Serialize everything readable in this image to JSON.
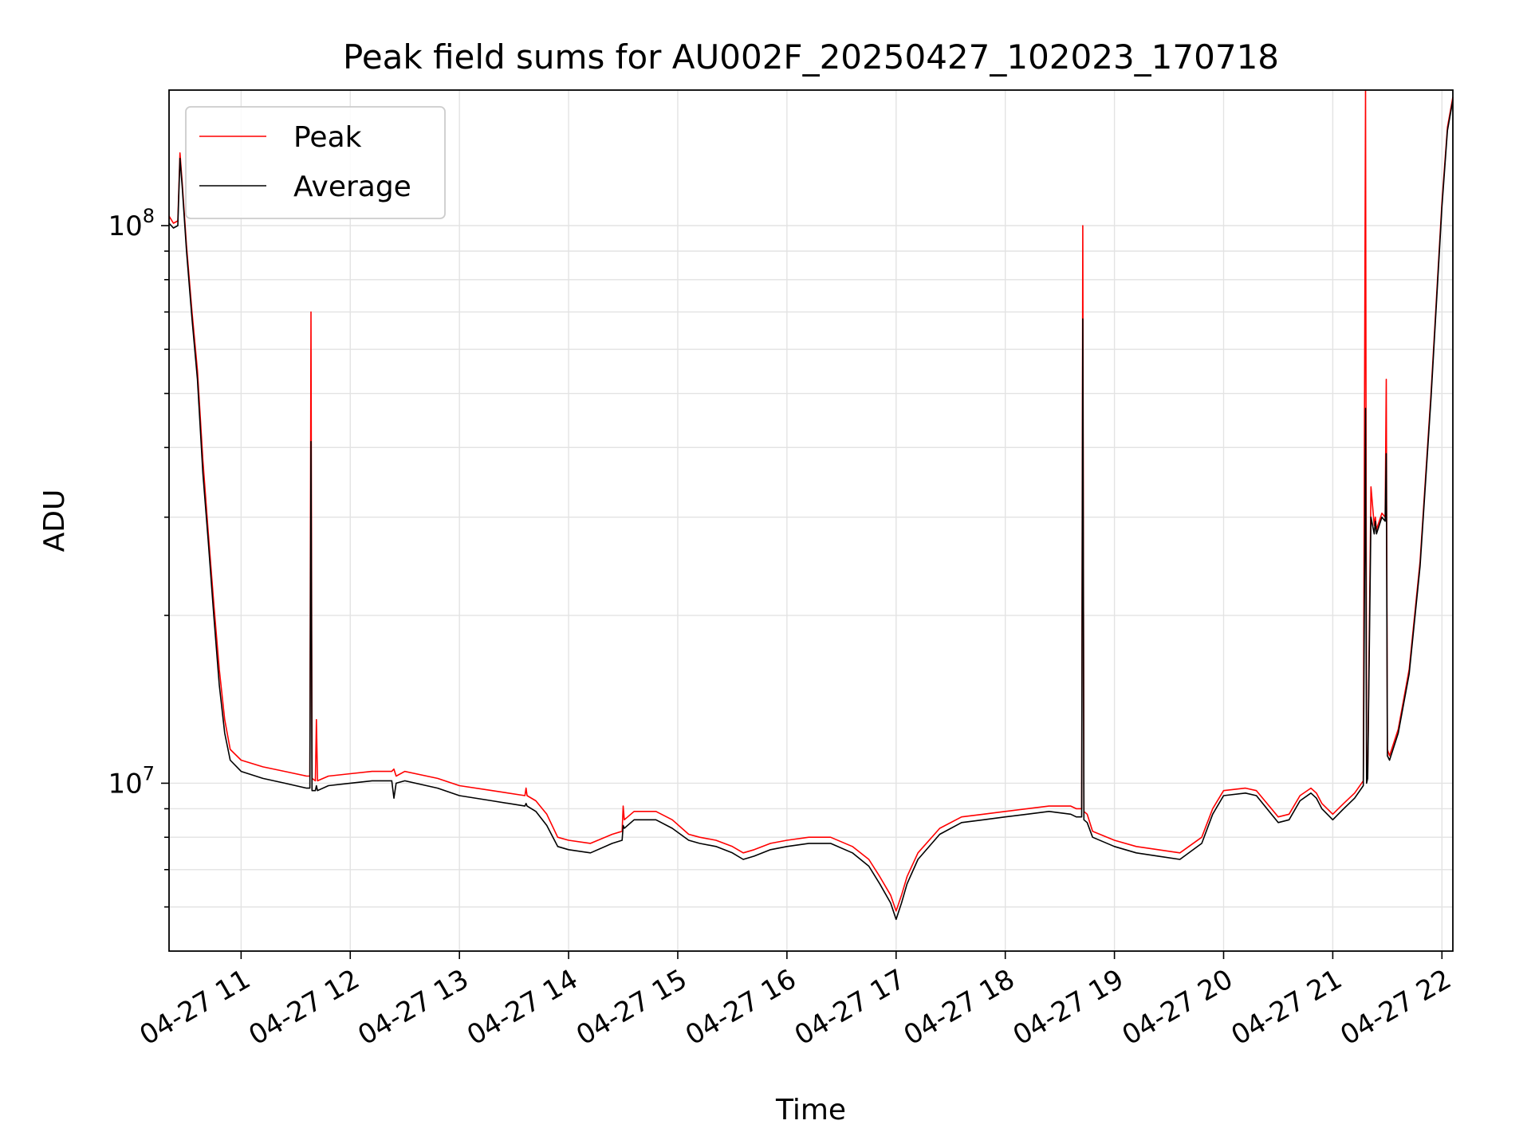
{
  "chart_data": {
    "type": "line",
    "title": "Peak field sums for AU002F_20250427_102023_170718",
    "xlabel": "Time",
    "ylabel": "ADU",
    "x_unit": "hour of 2025-04-27",
    "yscale": "log",
    "xlim": [
      10.34,
      22.1
    ],
    "ylim": [
      5000000,
      175000000
    ],
    "grid": {
      "major": true,
      "minor_y": true
    },
    "legend_position": "top-left",
    "x_ticks": [
      {
        "value": 11,
        "label": "04-27 11"
      },
      {
        "value": 12,
        "label": "04-27 12"
      },
      {
        "value": 13,
        "label": "04-27 13"
      },
      {
        "value": 14,
        "label": "04-27 14"
      },
      {
        "value": 15,
        "label": "04-27 15"
      },
      {
        "value": 16,
        "label": "04-27 16"
      },
      {
        "value": 17,
        "label": "04-27 17"
      },
      {
        "value": 18,
        "label": "04-27 18"
      },
      {
        "value": 19,
        "label": "04-27 19"
      },
      {
        "value": 20,
        "label": "04-27 20"
      },
      {
        "value": 21,
        "label": "04-27 21"
      },
      {
        "value": 22,
        "label": "04-27 22"
      }
    ],
    "y_ticks": [
      {
        "value": 10000000,
        "base": "10",
        "exp": "7"
      },
      {
        "value": 100000000,
        "base": "10",
        "exp": "8"
      }
    ],
    "series": [
      {
        "name": "Peak",
        "color": "#ff0000",
        "x": [
          10.34,
          10.38,
          10.42,
          10.44,
          10.46,
          10.5,
          10.55,
          10.6,
          10.65,
          10.7,
          10.75,
          10.8,
          10.85,
          10.9,
          11.0,
          11.2,
          11.4,
          11.6,
          11.63,
          11.64,
          11.65,
          11.68,
          11.69,
          11.7,
          11.8,
          12.0,
          12.2,
          12.38,
          12.4,
          12.42,
          12.5,
          12.8,
          13.0,
          13.3,
          13.6,
          13.61,
          13.62,
          13.7,
          13.8,
          13.9,
          14.0,
          14.2,
          14.4,
          14.49,
          14.5,
          14.51,
          14.6,
          14.8,
          14.95,
          15.1,
          15.2,
          15.35,
          15.5,
          15.6,
          15.7,
          15.85,
          16.0,
          16.2,
          16.4,
          16.6,
          16.75,
          16.85,
          16.95,
          17.0,
          17.05,
          17.1,
          17.2,
          17.4,
          17.6,
          17.8,
          18.0,
          18.2,
          18.4,
          18.6,
          18.65,
          18.7,
          18.71,
          18.72,
          18.75,
          18.8,
          19.0,
          19.2,
          19.4,
          19.6,
          19.8,
          19.9,
          20.0,
          20.2,
          20.3,
          20.5,
          20.6,
          20.7,
          20.8,
          20.85,
          20.9,
          21.0,
          21.1,
          21.2,
          21.28,
          21.3,
          21.31,
          21.32,
          21.35,
          21.38,
          21.39,
          21.4,
          21.45,
          21.48,
          21.49,
          21.5,
          21.52,
          21.6,
          21.7,
          21.8,
          21.9,
          22.0,
          22.05,
          22.1
        ],
        "y": [
          104000000,
          101000000,
          102000000,
          135000000,
          120000000,
          92000000,
          70000000,
          55000000,
          38000000,
          28000000,
          21000000,
          16000000,
          13000000,
          11500000,
          11000000,
          10700000,
          10500000,
          10300000,
          10300000,
          70000000,
          10200000,
          10100000,
          13000000,
          10100000,
          10300000,
          10400000,
          10500000,
          10500000,
          10600000,
          10300000,
          10500000,
          10200000,
          9900000,
          9700000,
          9500000,
          9800000,
          9500000,
          9300000,
          8800000,
          8000000,
          7900000,
          7800000,
          8100000,
          8200000,
          9100000,
          8600000,
          8900000,
          8900000,
          8600000,
          8100000,
          8000000,
          7900000,
          7700000,
          7500000,
          7600000,
          7800000,
          7900000,
          8000000,
          8000000,
          7700000,
          7300000,
          6800000,
          6300000,
          5900000,
          6300000,
          6800000,
          7500000,
          8300000,
          8700000,
          8800000,
          8900000,
          9000000,
          9100000,
          9100000,
          9000000,
          9000000,
          100000000,
          8900000,
          8800000,
          8200000,
          7900000,
          7700000,
          7600000,
          7500000,
          8000000,
          9000000,
          9700000,
          9800000,
          9700000,
          8700000,
          8800000,
          9500000,
          9800000,
          9600000,
          9200000,
          8800000,
          9200000,
          9600000,
          10100000,
          175000000,
          10200000,
          10400000,
          34000000,
          29000000,
          30000000,
          28500000,
          30500000,
          30000000,
          53000000,
          11500000,
          11200000,
          12500000,
          16000000,
          25000000,
          50000000,
          110000000,
          150000000,
          170000000
        ]
      },
      {
        "name": "Average",
        "color": "#000000",
        "x": [
          10.34,
          10.38,
          10.42,
          10.44,
          10.46,
          10.5,
          10.55,
          10.6,
          10.65,
          10.7,
          10.75,
          10.8,
          10.85,
          10.9,
          11.0,
          11.2,
          11.4,
          11.6,
          11.63,
          11.64,
          11.65,
          11.68,
          11.69,
          11.7,
          11.8,
          12.0,
          12.2,
          12.38,
          12.4,
          12.42,
          12.5,
          12.8,
          13.0,
          13.3,
          13.6,
          13.61,
          13.62,
          13.7,
          13.8,
          13.9,
          14.0,
          14.2,
          14.4,
          14.49,
          14.5,
          14.51,
          14.6,
          14.8,
          14.95,
          15.1,
          15.2,
          15.35,
          15.5,
          15.6,
          15.7,
          15.85,
          16.0,
          16.2,
          16.4,
          16.6,
          16.75,
          16.85,
          16.95,
          17.0,
          17.05,
          17.1,
          17.2,
          17.4,
          17.6,
          17.8,
          18.0,
          18.2,
          18.4,
          18.6,
          18.65,
          18.7,
          18.71,
          18.72,
          18.75,
          18.8,
          19.0,
          19.2,
          19.4,
          19.6,
          19.8,
          19.9,
          20.0,
          20.2,
          20.3,
          20.5,
          20.6,
          20.7,
          20.8,
          20.85,
          20.9,
          21.0,
          21.1,
          21.2,
          21.28,
          21.3,
          21.31,
          21.32,
          21.35,
          21.38,
          21.39,
          21.4,
          21.45,
          21.48,
          21.49,
          21.5,
          21.52,
          21.6,
          21.7,
          21.8,
          21.9,
          22.0,
          22.05,
          22.1
        ],
        "y": [
          101000000,
          99000000,
          100000000,
          132000000,
          118000000,
          90000000,
          68000000,
          53000000,
          36000000,
          27000000,
          20000000,
          15000000,
          12300000,
          11000000,
          10500000,
          10200000,
          10000000,
          9800000,
          9800000,
          41000000,
          9700000,
          9700000,
          9900000,
          9700000,
          9900000,
          10000000,
          10100000,
          10100000,
          9400000,
          10000000,
          10100000,
          9800000,
          9500000,
          9300000,
          9100000,
          9200000,
          9100000,
          8900000,
          8400000,
          7700000,
          7600000,
          7500000,
          7800000,
          7900000,
          8400000,
          8300000,
          8600000,
          8600000,
          8300000,
          7900000,
          7800000,
          7700000,
          7500000,
          7300000,
          7400000,
          7600000,
          7700000,
          7800000,
          7800000,
          7500000,
          7100000,
          6600000,
          6100000,
          5700000,
          6100000,
          6600000,
          7300000,
          8100000,
          8500000,
          8600000,
          8700000,
          8800000,
          8900000,
          8800000,
          8700000,
          8700000,
          68000000,
          8600000,
          8500000,
          8000000,
          7700000,
          7500000,
          7400000,
          7300000,
          7800000,
          8800000,
          9500000,
          9600000,
          9500000,
          8500000,
          8600000,
          9300000,
          9600000,
          9400000,
          9000000,
          8600000,
          9000000,
          9400000,
          9900000,
          47000000,
          10000000,
          10200000,
          30000000,
          28000000,
          29500000,
          28000000,
          30000000,
          29500000,
          39000000,
          11200000,
          11000000,
          12300000,
          15700000,
          24500000,
          49000000,
          108000000,
          148000000,
          168000000
        ]
      }
    ]
  }
}
